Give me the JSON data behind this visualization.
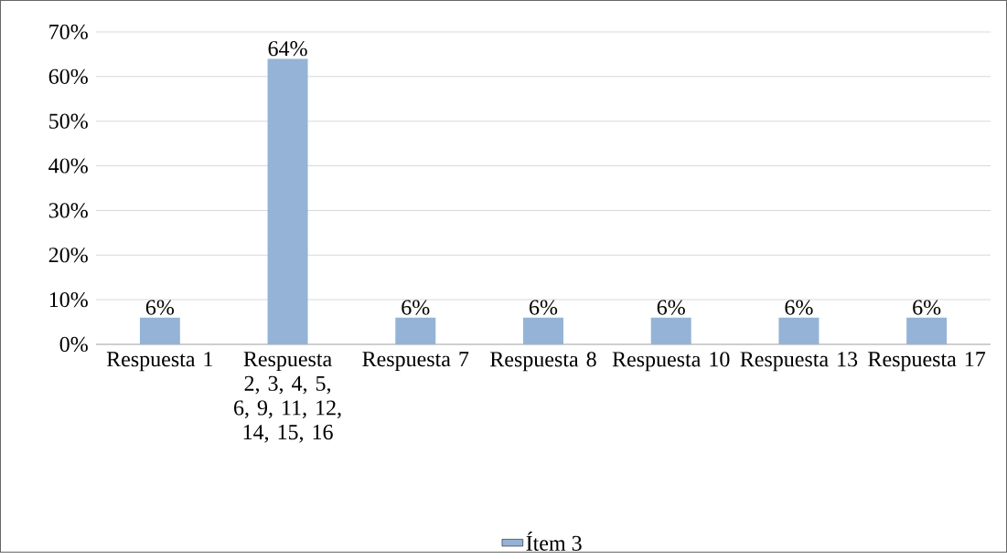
{
  "chart_data": {
    "type": "bar",
    "categories": [
      "Respuesta 1",
      "Respuesta 2, 3, 4, 5, 6, 9, 11, 12, 14, 15, 16",
      "Respuesta 7",
      "Respuesta 8",
      "Respuesta 10",
      "Respuesta 13",
      "Respuesta 17"
    ],
    "series": [
      {
        "name": "Ítem 3",
        "color": "#95b3d7",
        "values": [
          6,
          64,
          6,
          6,
          6,
          6,
          6
        ],
        "value_labels": [
          "6%",
          "64%",
          "6%",
          "6%",
          "6%",
          "6%",
          "6%"
        ]
      }
    ],
    "ylim": [
      0,
      70
    ],
    "yticks": [
      {
        "value": 0,
        "label": "0%"
      },
      {
        "value": 10,
        "label": "10%"
      },
      {
        "value": 20,
        "label": "20%"
      },
      {
        "value": 30,
        "label": "30%"
      },
      {
        "value": 40,
        "label": "40%"
      },
      {
        "value": 50,
        "label": "50%"
      },
      {
        "value": 60,
        "label": "60%"
      },
      {
        "value": 70,
        "label": "70%"
      }
    ],
    "grid": "y",
    "legend": "bottom"
  }
}
